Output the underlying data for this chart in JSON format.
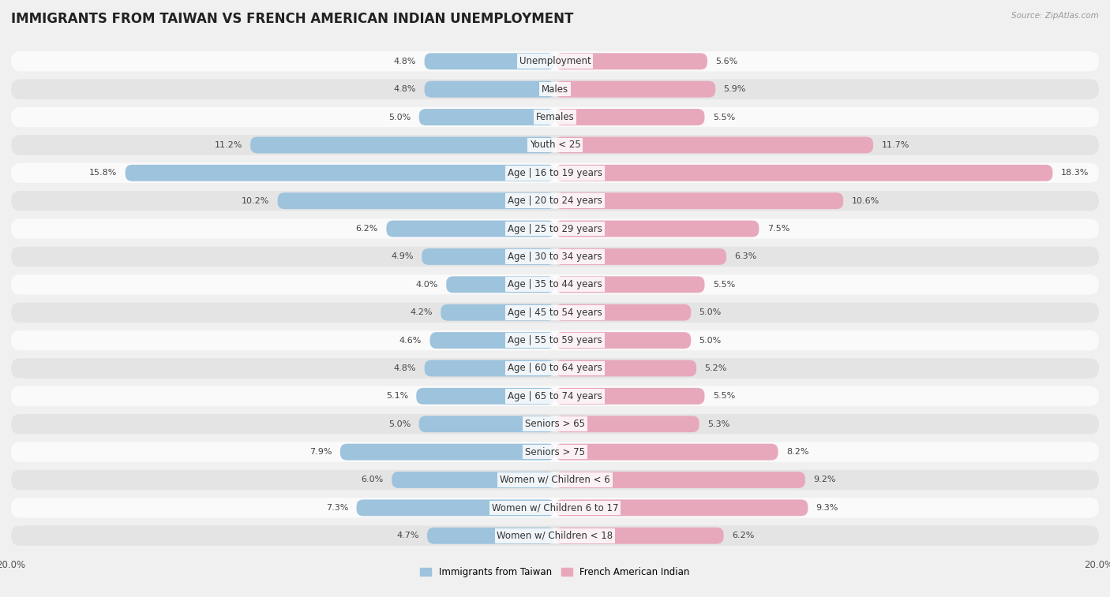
{
  "title": "IMMIGRANTS FROM TAIWAN VS FRENCH AMERICAN INDIAN UNEMPLOYMENT",
  "source": "Source: ZipAtlas.com",
  "categories": [
    "Unemployment",
    "Males",
    "Females",
    "Youth < 25",
    "Age | 16 to 19 years",
    "Age | 20 to 24 years",
    "Age | 25 to 29 years",
    "Age | 30 to 34 years",
    "Age | 35 to 44 years",
    "Age | 45 to 54 years",
    "Age | 55 to 59 years",
    "Age | 60 to 64 years",
    "Age | 65 to 74 years",
    "Seniors > 65",
    "Seniors > 75",
    "Women w/ Children < 6",
    "Women w/ Children 6 to 17",
    "Women w/ Children < 18"
  ],
  "taiwan_values": [
    4.8,
    4.8,
    5.0,
    11.2,
    15.8,
    10.2,
    6.2,
    4.9,
    4.0,
    4.2,
    4.6,
    4.8,
    5.1,
    5.0,
    7.9,
    6.0,
    7.3,
    4.7
  ],
  "french_values": [
    5.6,
    5.9,
    5.5,
    11.7,
    18.3,
    10.6,
    7.5,
    6.3,
    5.5,
    5.0,
    5.0,
    5.2,
    5.5,
    5.3,
    8.2,
    9.2,
    9.3,
    6.2
  ],
  "taiwan_color": "#9dc3dd",
  "french_color": "#e8a8bb",
  "taiwan_label": "Immigrants from Taiwan",
  "french_label": "French American Indian",
  "axis_max": 20.0,
  "bg_color": "#f0f0f0",
  "bar_bg_color": "#fafafa",
  "row_alt_color": "#e4e4e4",
  "title_fontsize": 12,
  "label_fontsize": 8.5,
  "value_fontsize": 8,
  "axis_label_fontsize": 8.5
}
